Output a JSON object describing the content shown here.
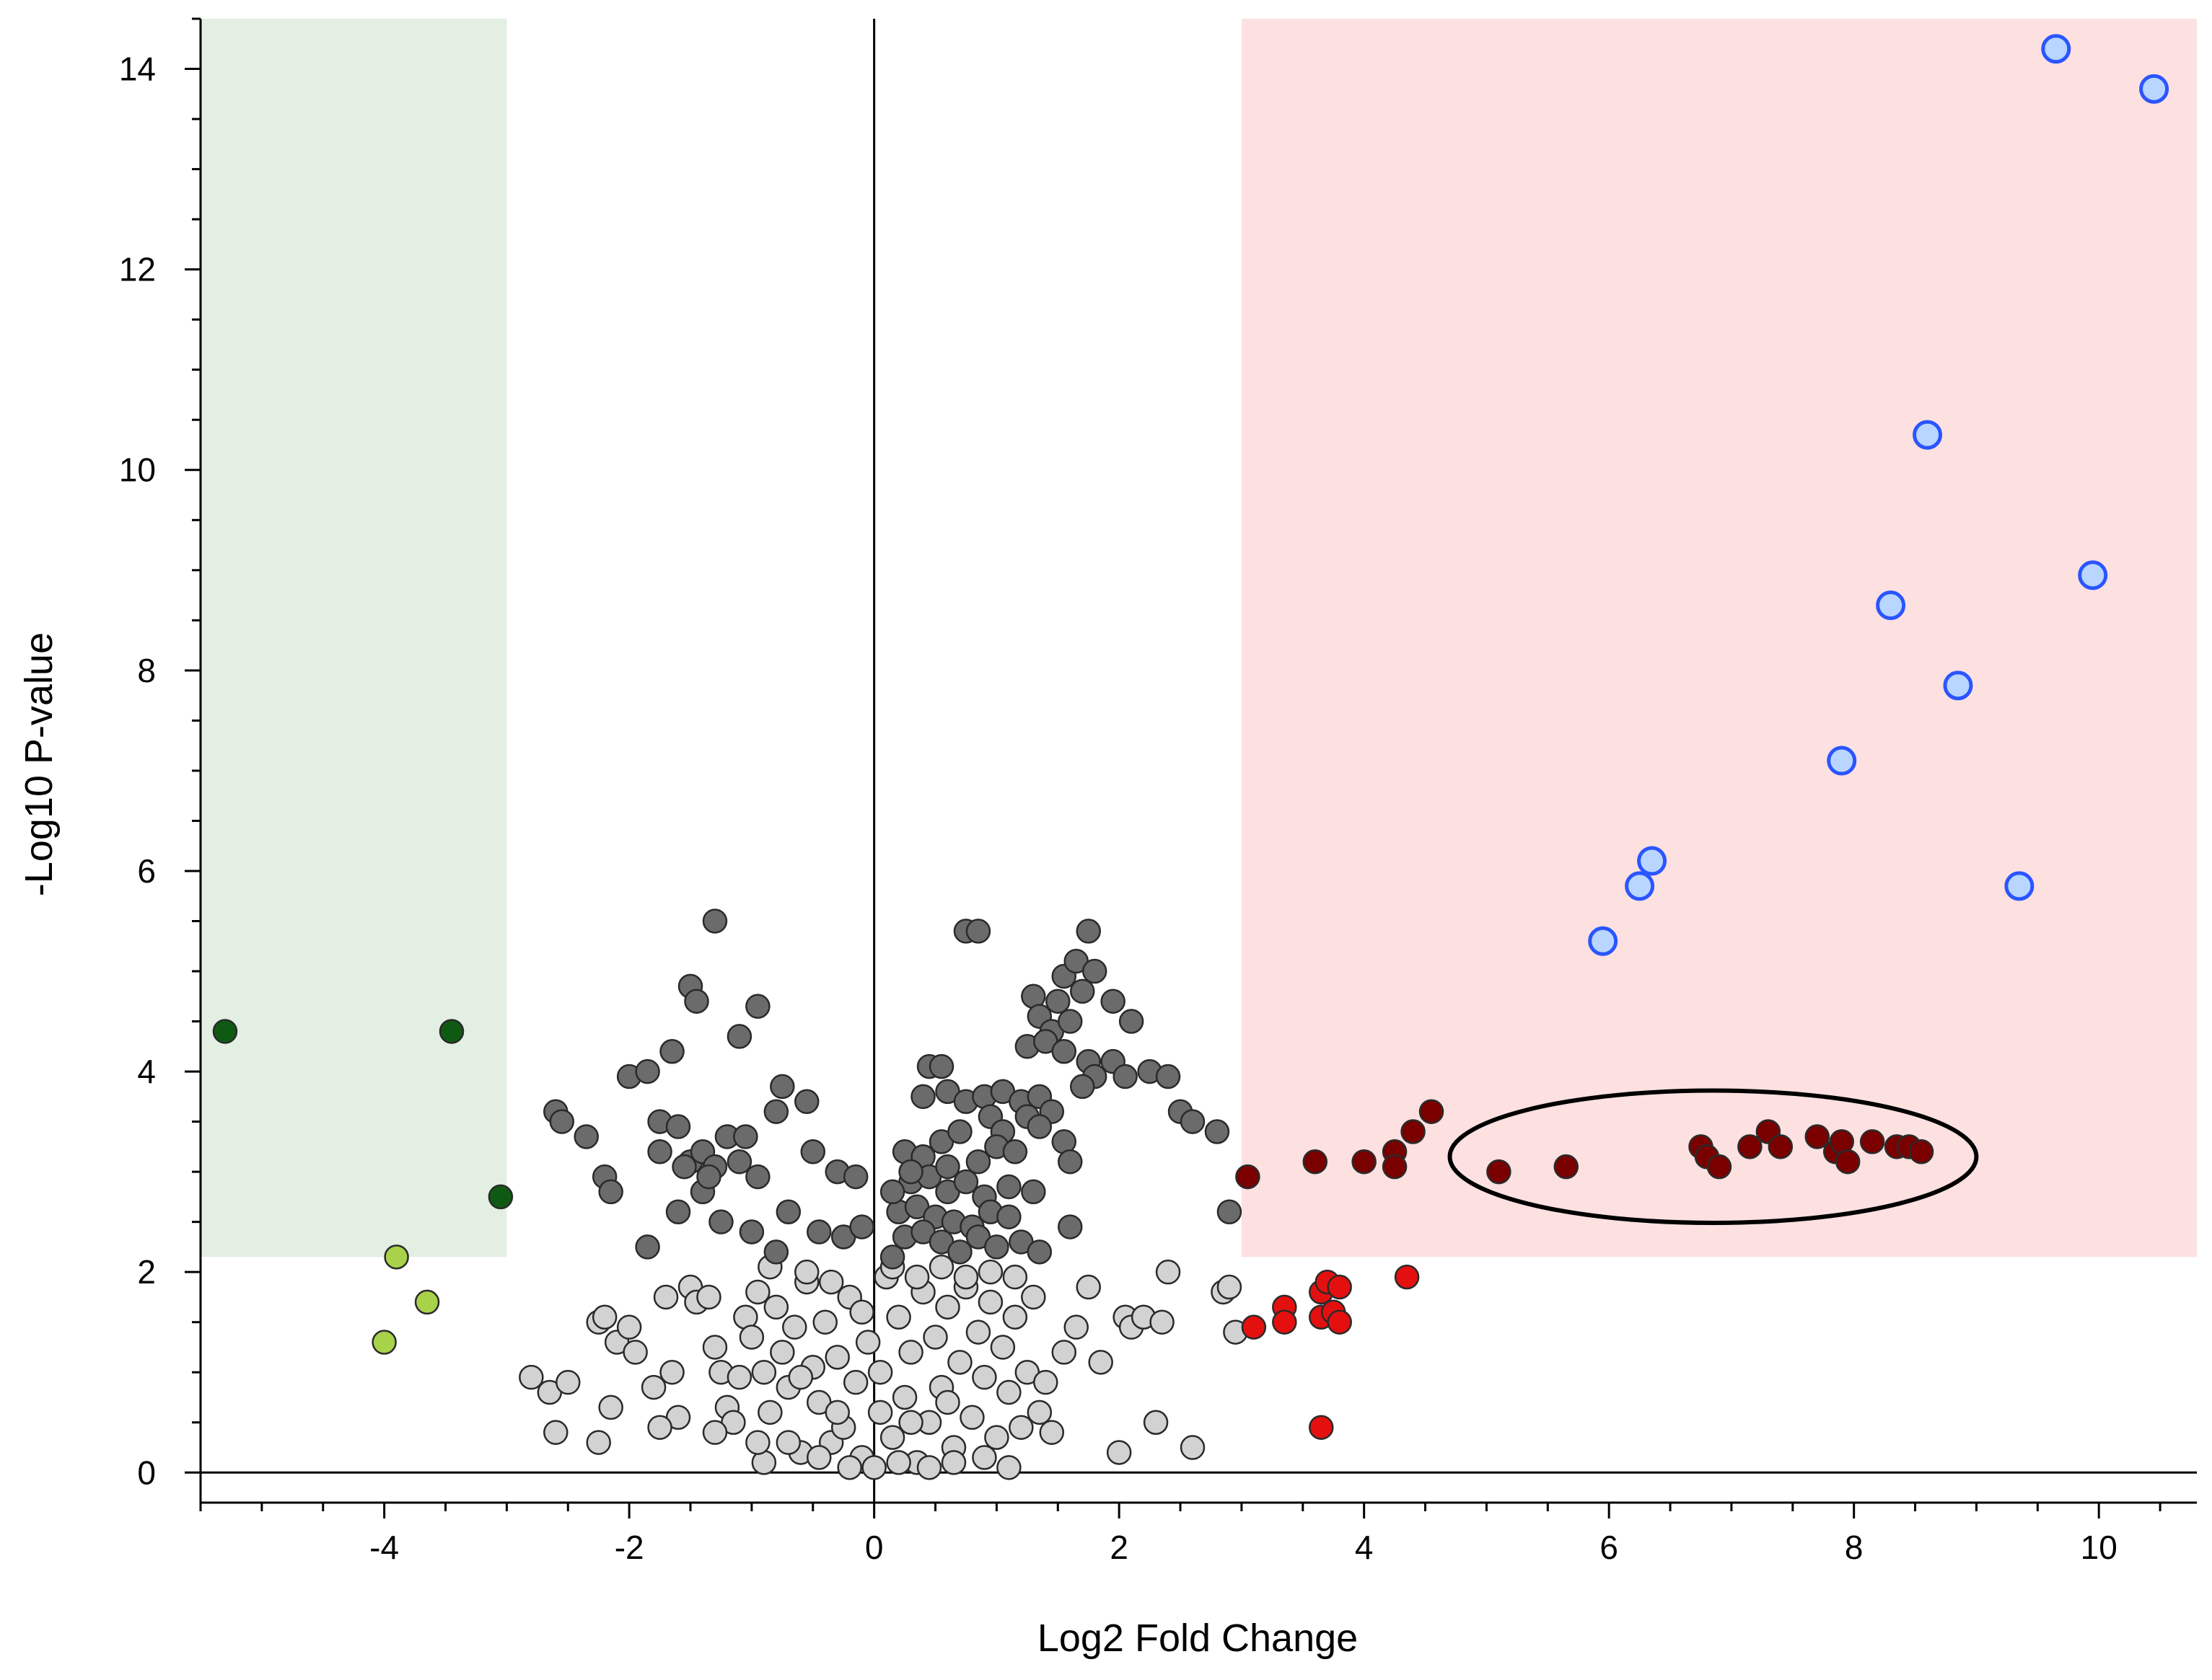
{
  "chart_data": {
    "type": "scatter",
    "title": "",
    "xlabel": "Log2 Fold Change",
    "ylabel": "-Log10 P-value",
    "xlim": [
      -5.5,
      10.8
    ],
    "ylim": [
      -0.3,
      14.5
    ],
    "xticks": [
      -4,
      -2,
      0,
      2,
      4,
      6,
      8,
      10
    ],
    "yticks": [
      0,
      2,
      4,
      6,
      8,
      10,
      12,
      14
    ],
    "xtick_labels": [
      "-4",
      "-2",
      "0",
      "2",
      "4",
      "6",
      "8",
      "10"
    ],
    "ytick_labels": [
      "0",
      "2",
      "4",
      "6",
      "8",
      "10",
      "12",
      "14"
    ],
    "grid": false,
    "regions": [
      {
        "name": "down-regulated-zone",
        "x": [
          -5.5,
          -3.0
        ],
        "y": [
          2.15,
          14.5
        ],
        "color": "#e2efe2"
      },
      {
        "name": "up-regulated-zone",
        "x": [
          3.0,
          10.8
        ],
        "y": [
          2.15,
          14.5
        ],
        "color": "#fde0e0"
      }
    ],
    "reference_lines": [
      {
        "name": "x-zero-line",
        "axis": "x",
        "value": 0
      },
      {
        "name": "y-zero-line",
        "axis": "y",
        "value": 0
      }
    ],
    "annotations": [
      {
        "type": "ellipse",
        "name": "highlight-ellipse",
        "cx": 6.85,
        "cy": 3.15,
        "rx": 2.15,
        "ry": 0.66
      }
    ],
    "series": [
      {
        "name": "significant-down",
        "color": "#0f5a12",
        "points": [
          [
            -5.3,
            4.4
          ],
          [
            -3.45,
            4.4
          ],
          [
            -3.05,
            2.75
          ]
        ]
      },
      {
        "name": "moderate-down",
        "color": "#a8d24a",
        "points": [
          [
            -3.9,
            2.15
          ],
          [
            -3.65,
            1.7
          ],
          [
            -4.0,
            1.3
          ]
        ]
      },
      {
        "name": "highly-significant-up",
        "color": "#b8d6ff",
        "points": [
          [
            9.65,
            14.2
          ],
          [
            10.45,
            13.8
          ],
          [
            8.6,
            10.35
          ],
          [
            9.95,
            8.95
          ],
          [
            8.3,
            8.65
          ],
          [
            8.85,
            7.85
          ],
          [
            7.9,
            7.1
          ],
          [
            6.35,
            6.1
          ],
          [
            6.25,
            5.85
          ],
          [
            9.35,
            5.85
          ],
          [
            5.95,
            5.3
          ]
        ]
      },
      {
        "name": "significant-up",
        "color": "#7a0000",
        "points": [
          [
            4.55,
            3.6
          ],
          [
            4.4,
            3.4
          ],
          [
            4.25,
            3.2
          ],
          [
            4.25,
            3.05
          ],
          [
            4.0,
            3.1
          ],
          [
            3.6,
            3.1
          ],
          [
            3.05,
            2.95
          ],
          [
            5.1,
            3.0
          ],
          [
            5.65,
            3.05
          ],
          [
            6.75,
            3.25
          ],
          [
            6.8,
            3.15
          ],
          [
            6.9,
            3.05
          ],
          [
            7.15,
            3.25
          ],
          [
            7.3,
            3.4
          ],
          [
            7.4,
            3.25
          ],
          [
            7.7,
            3.35
          ],
          [
            7.85,
            3.2
          ],
          [
            7.9,
            3.3
          ],
          [
            7.95,
            3.1
          ],
          [
            8.15,
            3.3
          ],
          [
            8.35,
            3.25
          ],
          [
            8.45,
            3.25
          ],
          [
            8.55,
            3.2
          ]
        ]
      },
      {
        "name": "moderate-up",
        "color": "#e41010",
        "points": [
          [
            3.1,
            1.45
          ],
          [
            3.35,
            1.65
          ],
          [
            3.35,
            1.5
          ],
          [
            3.65,
            1.8
          ],
          [
            3.7,
            1.9
          ],
          [
            3.8,
            1.85
          ],
          [
            3.65,
            1.55
          ],
          [
            3.75,
            1.6
          ],
          [
            3.8,
            1.5
          ],
          [
            4.35,
            1.95
          ],
          [
            3.65,
            0.45
          ]
        ]
      },
      {
        "name": "nonsignificant-high",
        "color": "#6b6b6b",
        "points": [
          [
            -2.6,
            3.6
          ],
          [
            -2.55,
            3.5
          ],
          [
            -2.35,
            3.35
          ],
          [
            -2.2,
            2.95
          ],
          [
            -2.15,
            2.8
          ],
          [
            -2.0,
            3.95
          ],
          [
            -1.85,
            4.0
          ],
          [
            -1.65,
            4.2
          ],
          [
            -1.5,
            4.85
          ],
          [
            -1.45,
            4.7
          ],
          [
            -1.3,
            5.5
          ],
          [
            -1.1,
            4.35
          ],
          [
            -0.95,
            4.65
          ],
          [
            -1.75,
            3.5
          ],
          [
            -1.6,
            3.45
          ],
          [
            -1.75,
            3.2
          ],
          [
            -1.5,
            3.1
          ],
          [
            -1.4,
            3.2
          ],
          [
            -1.3,
            3.05
          ],
          [
            -1.1,
            3.1
          ],
          [
            -1.2,
            3.35
          ],
          [
            -1.05,
            3.35
          ],
          [
            -0.75,
            3.85
          ],
          [
            -0.55,
            3.7
          ],
          [
            -0.8,
            3.6
          ],
          [
            -0.5,
            3.2
          ],
          [
            -0.3,
            3.0
          ],
          [
            -0.15,
            2.95
          ],
          [
            -1.85,
            2.25
          ],
          [
            -1.6,
            2.6
          ],
          [
            -1.4,
            2.8
          ],
          [
            -1.25,
            2.5
          ],
          [
            -1.0,
            2.4
          ],
          [
            -0.8,
            2.2
          ],
          [
            -0.7,
            2.6
          ],
          [
            -0.45,
            2.4
          ],
          [
            -0.25,
            2.35
          ],
          [
            -0.1,
            2.45
          ],
          [
            -1.55,
            3.05
          ],
          [
            -1.35,
            2.95
          ],
          [
            -0.95,
            2.95
          ],
          [
            0.75,
            5.4
          ],
          [
            0.85,
            5.4
          ],
          [
            1.75,
            5.4
          ],
          [
            1.55,
            4.95
          ],
          [
            1.65,
            5.1
          ],
          [
            1.8,
            5.0
          ],
          [
            1.3,
            4.75
          ],
          [
            1.35,
            4.55
          ],
          [
            1.5,
            4.7
          ],
          [
            1.7,
            4.8
          ],
          [
            1.45,
            4.4
          ],
          [
            1.6,
            4.5
          ],
          [
            1.95,
            4.7
          ],
          [
            2.1,
            4.5
          ],
          [
            1.25,
            4.25
          ],
          [
            1.4,
            4.3
          ],
          [
            1.55,
            4.2
          ],
          [
            1.75,
            4.1
          ],
          [
            1.95,
            4.1
          ],
          [
            2.05,
            3.95
          ],
          [
            2.25,
            4.0
          ],
          [
            2.4,
            3.95
          ],
          [
            1.8,
            3.95
          ],
          [
            1.7,
            3.85
          ],
          [
            0.45,
            4.05
          ],
          [
            0.55,
            4.05
          ],
          [
            0.4,
            3.75
          ],
          [
            0.6,
            3.8
          ],
          [
            0.75,
            3.7
          ],
          [
            0.9,
            3.75
          ],
          [
            1.05,
            3.8
          ],
          [
            1.2,
            3.7
          ],
          [
            1.35,
            3.75
          ],
          [
            1.45,
            3.6
          ],
          [
            0.95,
            3.55
          ],
          [
            1.05,
            3.4
          ],
          [
            1.25,
            3.55
          ],
          [
            1.35,
            3.45
          ],
          [
            1.55,
            3.3
          ],
          [
            1.6,
            3.1
          ],
          [
            2.5,
            3.6
          ],
          [
            2.6,
            3.5
          ],
          [
            2.8,
            3.4
          ],
          [
            0.25,
            3.2
          ],
          [
            0.4,
            3.15
          ],
          [
            0.55,
            3.3
          ],
          [
            0.7,
            3.4
          ],
          [
            0.85,
            3.1
          ],
          [
            1.0,
            3.25
          ],
          [
            1.15,
            3.2
          ],
          [
            0.3,
            2.9
          ],
          [
            0.45,
            2.95
          ],
          [
            0.6,
            2.8
          ],
          [
            0.75,
            2.9
          ],
          [
            0.9,
            2.75
          ],
          [
            1.1,
            2.85
          ],
          [
            1.3,
            2.8
          ],
          [
            0.2,
            2.6
          ],
          [
            0.35,
            2.65
          ],
          [
            0.5,
            2.55
          ],
          [
            0.65,
            2.5
          ],
          [
            0.8,
            2.45
          ],
          [
            0.95,
            2.6
          ],
          [
            1.1,
            2.55
          ],
          [
            0.25,
            2.35
          ],
          [
            0.4,
            2.4
          ],
          [
            0.55,
            2.3
          ],
          [
            0.7,
            2.2
          ],
          [
            0.85,
            2.35
          ],
          [
            1.0,
            2.25
          ],
          [
            1.2,
            2.3
          ],
          [
            1.35,
            2.2
          ],
          [
            0.15,
            2.15
          ],
          [
            1.6,
            2.45
          ],
          [
            2.9,
            2.6
          ],
          [
            0.15,
            2.8
          ],
          [
            0.3,
            3.0
          ],
          [
            0.6,
            3.05
          ]
        ]
      },
      {
        "name": "nonsignificant-low",
        "color": "#d2d2d2",
        "points": [
          [
            -2.8,
            0.95
          ],
          [
            -2.65,
            0.8
          ],
          [
            -2.6,
            0.4
          ],
          [
            -2.5,
            0.9
          ],
          [
            -2.25,
            1.5
          ],
          [
            -2.2,
            1.55
          ],
          [
            -2.1,
            1.3
          ],
          [
            -2.0,
            1.45
          ],
          [
            -2.25,
            0.3
          ],
          [
            -2.15,
            0.65
          ],
          [
            -1.95,
            1.2
          ],
          [
            -1.8,
            0.85
          ],
          [
            -1.7,
            1.75
          ],
          [
            -1.65,
            1.0
          ],
          [
            -1.6,
            0.55
          ],
          [
            -1.5,
            1.85
          ],
          [
            -1.45,
            1.7
          ],
          [
            -1.35,
            1.75
          ],
          [
            -1.3,
            1.25
          ],
          [
            -1.25,
            1.0
          ],
          [
            -1.2,
            0.65
          ],
          [
            -1.15,
            0.5
          ],
          [
            -1.1,
            0.95
          ],
          [
            -1.05,
            1.55
          ],
          [
            -1.0,
            1.35
          ],
          [
            -0.95,
            1.8
          ],
          [
            -0.9,
            1.0
          ],
          [
            -0.85,
            0.6
          ],
          [
            -0.8,
            1.65
          ],
          [
            -0.75,
            1.2
          ],
          [
            -0.7,
            0.85
          ],
          [
            -0.65,
            1.45
          ],
          [
            -0.6,
            0.2
          ],
          [
            -0.55,
            1.9
          ],
          [
            -0.5,
            1.05
          ],
          [
            -0.45,
            0.7
          ],
          [
            -0.4,
            1.5
          ],
          [
            -0.35,
            0.3
          ],
          [
            -0.3,
            1.15
          ],
          [
            -0.25,
            0.45
          ],
          [
            -0.2,
            1.75
          ],
          [
            -0.15,
            0.9
          ],
          [
            -0.1,
            0.15
          ],
          [
            -0.05,
            1.3
          ],
          [
            0.05,
            0.6
          ],
          [
            0.1,
            1.95
          ],
          [
            0.15,
            0.35
          ],
          [
            0.2,
            1.55
          ],
          [
            0.25,
            0.75
          ],
          [
            0.3,
            1.2
          ],
          [
            0.35,
            0.1
          ],
          [
            0.4,
            1.8
          ],
          [
            0.45,
            0.5
          ],
          [
            0.5,
            1.35
          ],
          [
            0.55,
            0.85
          ],
          [
            0.6,
            1.65
          ],
          [
            0.65,
            0.25
          ],
          [
            0.7,
            1.1
          ],
          [
            0.75,
            1.85
          ],
          [
            0.8,
            0.55
          ],
          [
            0.85,
            1.4
          ],
          [
            0.9,
            0.95
          ],
          [
            0.95,
            1.7
          ],
          [
            1.0,
            0.35
          ],
          [
            1.05,
            1.25
          ],
          [
            1.1,
            0.8
          ],
          [
            1.15,
            1.55
          ],
          [
            1.2,
            0.45
          ],
          [
            1.25,
            1.0
          ],
          [
            1.3,
            1.75
          ],
          [
            1.35,
            0.6
          ],
          [
            1.45,
            0.4
          ],
          [
            1.55,
            1.2
          ],
          [
            1.65,
            1.45
          ],
          [
            1.75,
            1.85
          ],
          [
            1.85,
            1.1
          ],
          [
            2.0,
            0.2
          ],
          [
            2.05,
            1.55
          ],
          [
            2.1,
            1.45
          ],
          [
            2.2,
            1.55
          ],
          [
            2.3,
            0.5
          ],
          [
            2.35,
            1.5
          ],
          [
            2.4,
            2.0
          ],
          [
            2.6,
            0.25
          ],
          [
            2.85,
            1.8
          ],
          [
            2.9,
            1.85
          ],
          [
            2.95,
            1.4
          ],
          [
            -0.85,
            2.05
          ],
          [
            -0.55,
            2.0
          ],
          [
            -0.35,
            1.9
          ],
          [
            0.15,
            2.05
          ],
          [
            0.35,
            1.95
          ],
          [
            0.55,
            2.05
          ],
          [
            0.75,
            1.95
          ],
          [
            0.95,
            2.0
          ],
          [
            1.15,
            1.95
          ],
          [
            -0.7,
            0.3
          ],
          [
            -0.45,
            0.15
          ],
          [
            -0.2,
            0.05
          ],
          [
            0.0,
            0.05
          ],
          [
            0.2,
            0.1
          ],
          [
            0.45,
            0.05
          ],
          [
            0.65,
            0.1
          ],
          [
            -0.9,
            0.1
          ],
          [
            0.9,
            0.15
          ],
          [
            1.1,
            0.05
          ],
          [
            -1.3,
            0.4
          ],
          [
            -1.75,
            0.45
          ],
          [
            -0.3,
            0.6
          ],
          [
            0.05,
            1.0
          ],
          [
            -0.1,
            1.6
          ],
          [
            0.3,
            0.5
          ],
          [
            0.6,
            0.7
          ],
          [
            -0.6,
            0.95
          ],
          [
            -0.95,
            0.3
          ],
          [
            1.4,
            0.9
          ]
        ]
      }
    ]
  }
}
